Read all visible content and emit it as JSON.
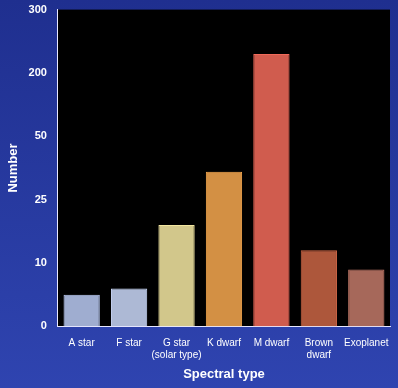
{
  "chart_data": {
    "type": "bar",
    "x_label": "Spectral type",
    "y_label": "Number",
    "categories": [
      "A star",
      "F star",
      "G star (solar type)",
      "K dwarf",
      "M dwarf",
      "Brown dwarf",
      "Exoplanet"
    ],
    "values": [
      5,
      6,
      19,
      36,
      230,
      13,
      9
    ],
    "colors": [
      "#b8c8f0",
      "#c8d6f6",
      "#f2e6a0",
      "#f3a64e",
      "#f06a5a",
      "#c86444",
      "#c07868"
    ],
    "ylim": [
      0,
      300
    ],
    "yticks": [
      0,
      10,
      25,
      50,
      200,
      300
    ],
    "grid": false
  }
}
